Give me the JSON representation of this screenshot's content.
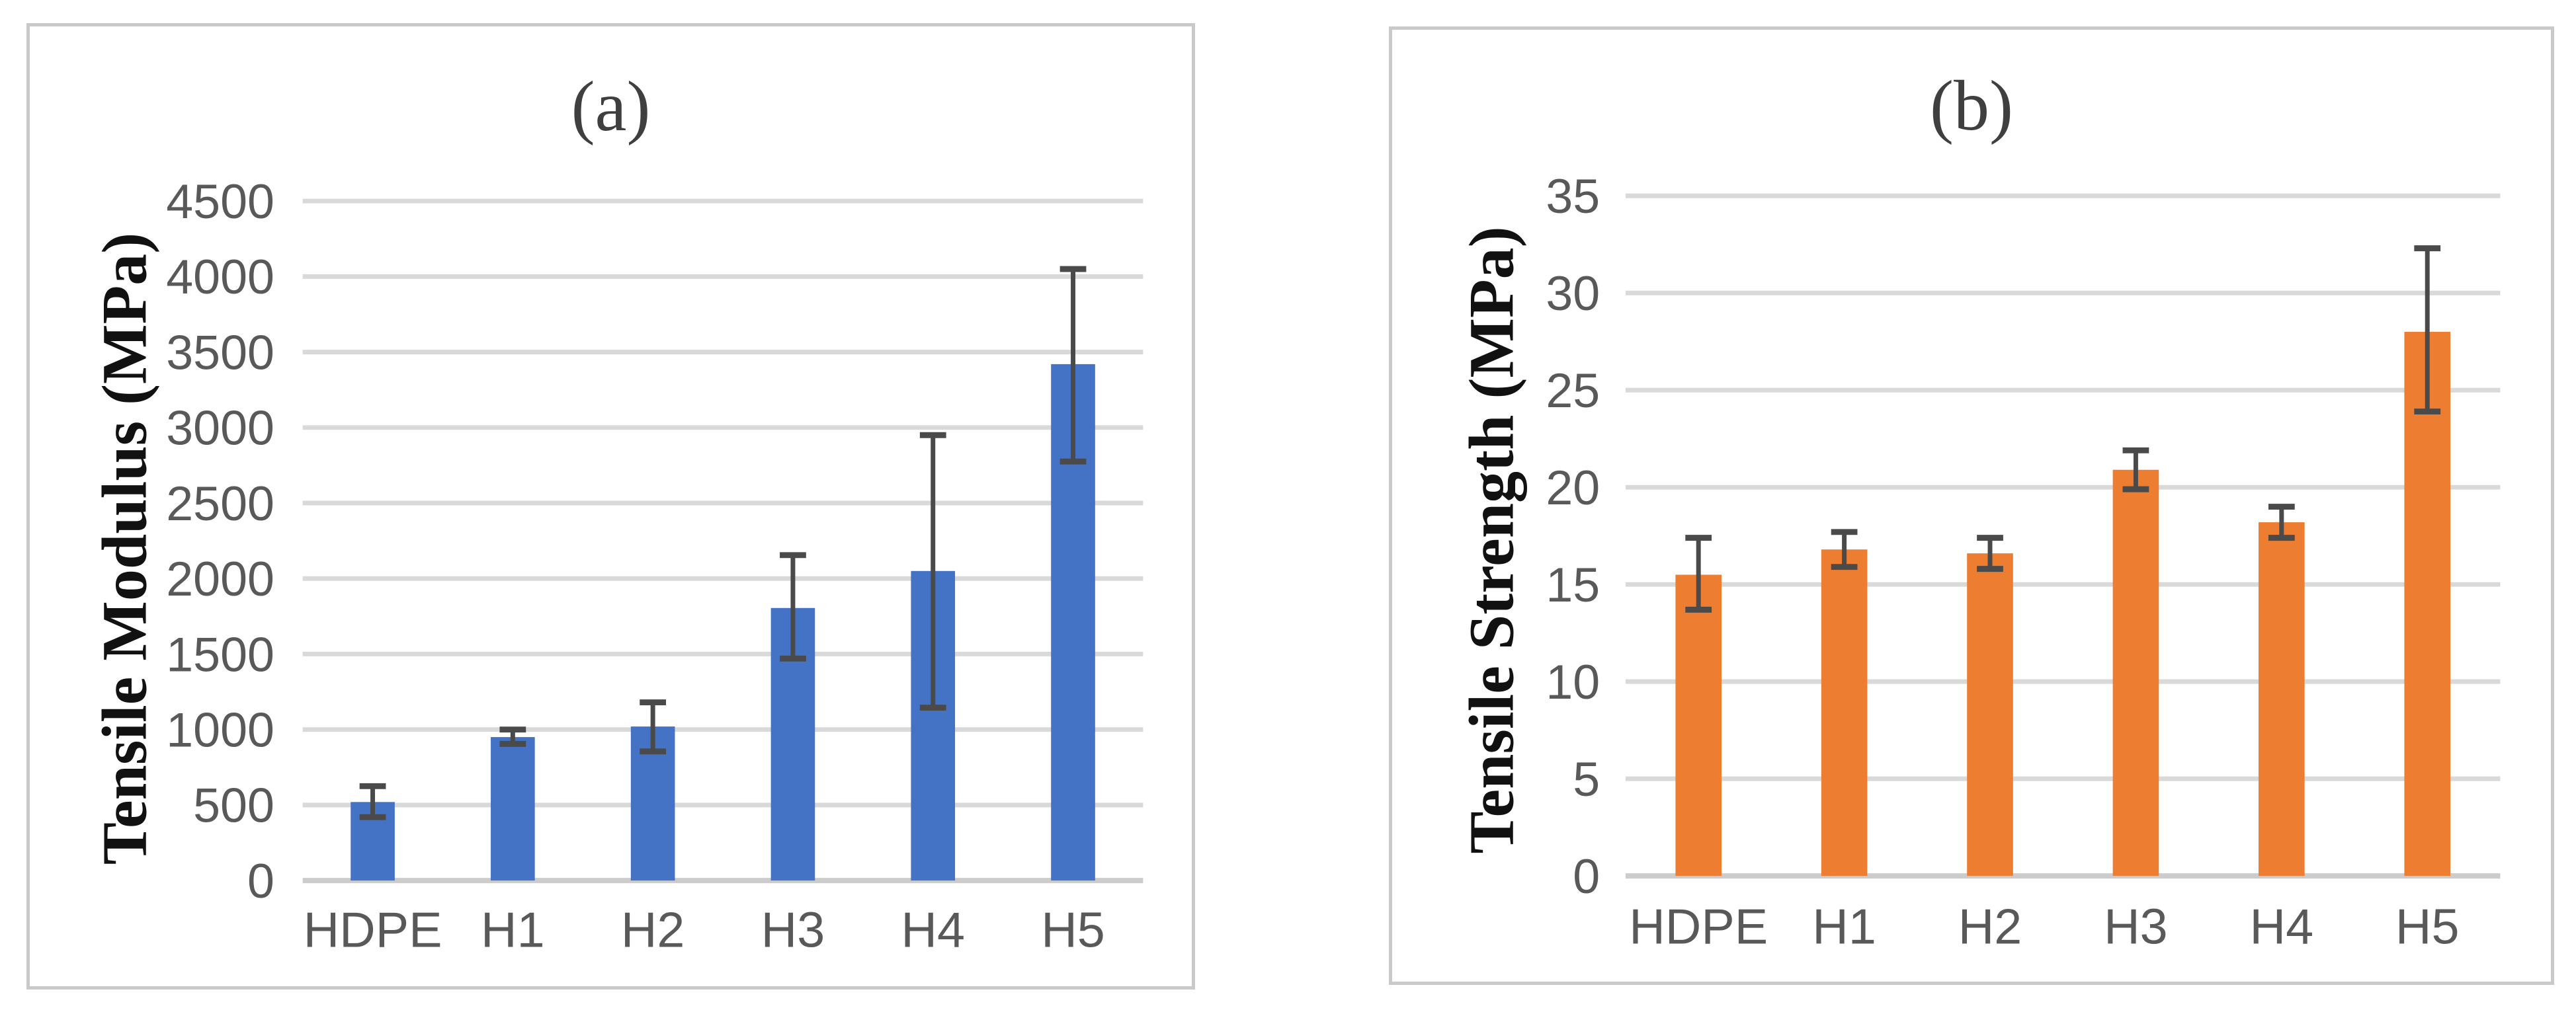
{
  "chart_data": [
    {
      "type": "bar",
      "title": "(a)",
      "ylabel": "Tensile Modulus (MPa)",
      "xlabel": "",
      "categories": [
        "HDPE",
        "H1",
        "H2",
        "H3",
        "H4",
        "H5"
      ],
      "values": [
        520,
        950,
        1020,
        1805,
        2050,
        3420
      ],
      "error_plus": [
        105,
        50,
        160,
        350,
        900,
        630
      ],
      "error_minus": [
        100,
        45,
        165,
        335,
        905,
        645
      ],
      "ylim": [
        0,
        4500
      ],
      "ytick_step": 500,
      "bar_color": "#4472C4",
      "error_bar_color": "#4a4a4a",
      "gridline_color": "#d9d9d9",
      "axisline_color": "#cccccc",
      "tick_label_color": "#595959",
      "grid": "horizontal",
      "legend": "none"
    },
    {
      "type": "bar",
      "title": "(b)",
      "ylabel": "Tensile Strength (MPa)",
      "xlabel": "",
      "categories": [
        "HDPE",
        "H1",
        "H2",
        "H3",
        "H4",
        "H5"
      ],
      "values": [
        15.5,
        16.8,
        16.6,
        20.9,
        18.2,
        28.0
      ],
      "error_plus": [
        1.9,
        0.9,
        0.8,
        1.0,
        0.8,
        4.3
      ],
      "error_minus": [
        1.8,
        0.9,
        0.8,
        1.0,
        0.8,
        4.1
      ],
      "ylim": [
        0,
        35
      ],
      "ytick_step": 5,
      "bar_color": "#ED7D31",
      "error_bar_color": "#4a4a4a",
      "gridline_color": "#d9d9d9",
      "axisline_color": "#cccccc",
      "tick_label_color": "#595959",
      "grid": "horizontal",
      "legend": "none"
    }
  ]
}
